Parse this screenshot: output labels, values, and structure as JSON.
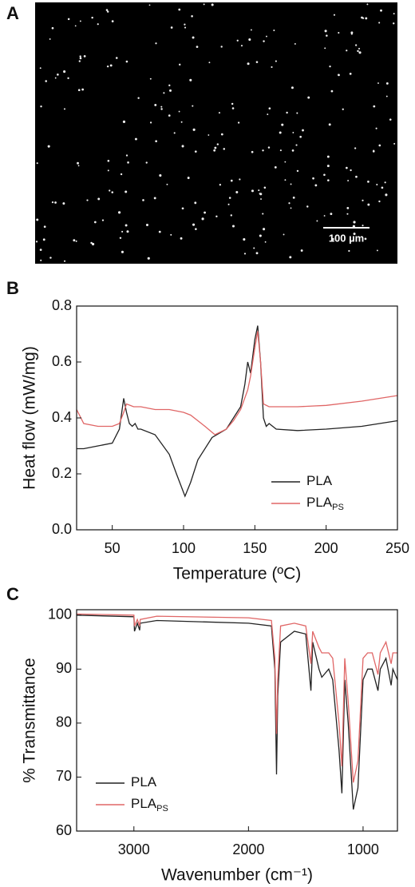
{
  "panel_a": {
    "label": "A",
    "scale_bar": "100 µm"
  },
  "chart_data": [
    {
      "type": "line",
      "label": "B",
      "x_label": "Temperature (ºC)",
      "y_label": "Heat flow (mW/mg)",
      "xlim": [
        25,
        250
      ],
      "xticks": [
        50,
        100,
        150,
        200,
        250
      ],
      "ylim": [
        0,
        0.8
      ],
      "yticks": [
        {
          "value": 0,
          "label": "0.0"
        },
        0.2,
        0.4,
        0.6,
        0.8
      ],
      "legend": "lower right",
      "series": [
        {
          "name": "PLA",
          "color": "#222222",
          "x": [
            25,
            30,
            40,
            50,
            55,
            58,
            60,
            62,
            64,
            66,
            68,
            70,
            80,
            90,
            95,
            101,
            105,
            110,
            120,
            130,
            140,
            143,
            145,
            147,
            150,
            152,
            154,
            156,
            158,
            160,
            165,
            180,
            200,
            225,
            250
          ],
          "values": [
            0.29,
            0.29,
            0.3,
            0.31,
            0.36,
            0.47,
            0.42,
            0.38,
            0.37,
            0.38,
            0.36,
            0.36,
            0.34,
            0.27,
            0.2,
            0.12,
            0.17,
            0.25,
            0.33,
            0.36,
            0.44,
            0.52,
            0.6,
            0.56,
            0.68,
            0.73,
            0.6,
            0.4,
            0.37,
            0.38,
            0.36,
            0.355,
            0.36,
            0.37,
            0.39
          ]
        },
        {
          "name": "PLA",
          "subscript": "PS",
          "color": "#e06666",
          "x": [
            25,
            27,
            30,
            40,
            50,
            55,
            58,
            60,
            65,
            70,
            80,
            90,
            100,
            105,
            110,
            115,
            122,
            130,
            135,
            140,
            145,
            147,
            150,
            152,
            154,
            156,
            160,
            165,
            180,
            200,
            225,
            250
          ],
          "values": [
            0.43,
            0.41,
            0.38,
            0.37,
            0.37,
            0.38,
            0.42,
            0.45,
            0.44,
            0.44,
            0.43,
            0.43,
            0.42,
            0.41,
            0.39,
            0.37,
            0.34,
            0.36,
            0.39,
            0.43,
            0.5,
            0.55,
            0.65,
            0.71,
            0.6,
            0.45,
            0.44,
            0.44,
            0.44,
            0.445,
            0.46,
            0.48
          ]
        }
      ]
    },
    {
      "type": "line",
      "label": "C",
      "x_label": "Wavenumber (cm⁻¹)",
      "y_label": "% Transmittance",
      "xlim": [
        3500,
        700
      ],
      "xticks": [
        3000,
        2000,
        1000
      ],
      "ylim": [
        60,
        101
      ],
      "yticks": [
        60,
        70,
        80,
        90,
        100
      ],
      "legend": "lower left",
      "series": [
        {
          "name": "PLA",
          "color": "#222222",
          "x": [
            3500,
            3000,
            2995,
            2970,
            2950,
            2945,
            2800,
            2000,
            1800,
            1770,
            1755,
            1745,
            1720,
            1600,
            1500,
            1455,
            1440,
            1385,
            1360,
            1300,
            1265,
            1210,
            1185,
            1160,
            1130,
            1085,
            1045,
            1000,
            960,
            920,
            870,
            850,
            800,
            755,
            740,
            700
          ],
          "values": [
            100,
            99.7,
            97,
            98.5,
            97.2,
            98.5,
            99,
            98.5,
            98,
            90,
            70.5,
            85,
            95,
            97,
            96.5,
            86,
            95,
            90,
            88.5,
            90,
            88,
            75,
            67,
            88,
            80,
            64,
            68,
            88,
            90,
            90,
            86,
            90,
            92,
            87,
            90,
            88
          ]
        },
        {
          "name": "PLA",
          "subscript": "PS",
          "color": "#e06666",
          "x": [
            3500,
            3000,
            2995,
            2970,
            2950,
            2945,
            2800,
            2000,
            1800,
            1770,
            1755,
            1745,
            1720,
            1600,
            1500,
            1455,
            1440,
            1385,
            1360,
            1300,
            1265,
            1210,
            1185,
            1160,
            1130,
            1085,
            1045,
            1000,
            960,
            920,
            870,
            850,
            800,
            755,
            740,
            700
          ],
          "values": [
            100.2,
            100,
            98,
            99.2,
            98,
            99.2,
            99.8,
            99.5,
            99,
            92,
            78,
            88,
            98,
            98.5,
            98,
            91,
            97,
            94,
            93,
            93,
            92,
            80,
            72,
            92,
            84,
            69,
            73,
            92,
            93,
            93,
            89,
            93,
            95,
            91,
            93,
            93
          ]
        }
      ]
    }
  ]
}
